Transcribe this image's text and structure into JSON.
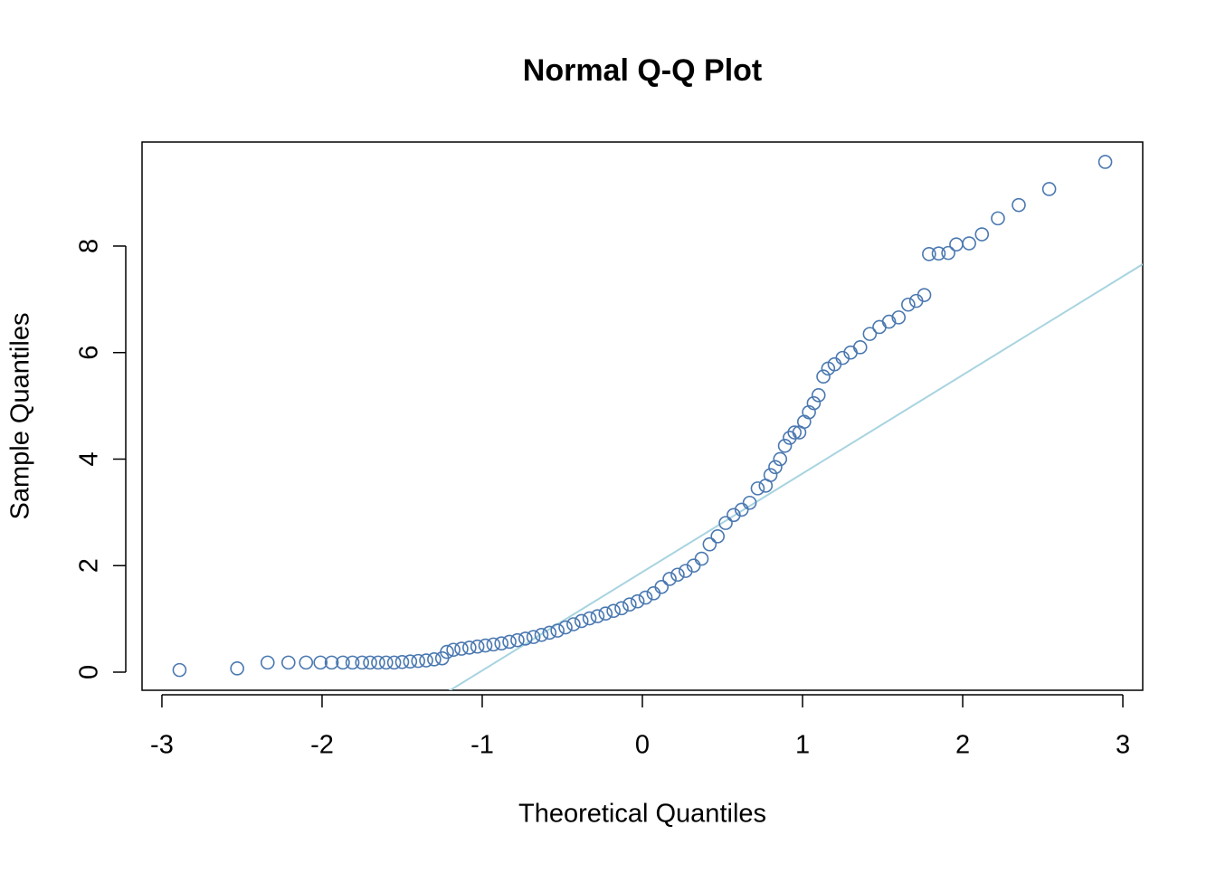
{
  "chart_data": {
    "type": "scatter",
    "title": "Normal Q-Q Plot",
    "x_label": "Theoretical Quantiles",
    "y_label": "Sample Quantiles",
    "xlim": [
      -3.124,
      3.124
    ],
    "ylim": [
      -0.34,
      9.953
    ],
    "xticks": [
      -3,
      -2,
      -1,
      0,
      1,
      2,
      3
    ],
    "yticks": [
      0,
      2,
      4,
      6,
      8
    ],
    "color": "#4a78b0",
    "line_color": "#a8d4e0",
    "qqline": {
      "intercept": 1.88,
      "slope": 1.85
    },
    "x": [
      -2.89,
      -2.53,
      -2.34,
      -2.21,
      -2.1,
      -2.01,
      -1.94,
      -1.87,
      -1.81,
      -1.75,
      -1.7,
      -1.65,
      -1.6,
      -1.55,
      -1.5,
      -1.45,
      -1.4,
      -1.35,
      -1.3,
      -1.25,
      -1.22,
      -1.18,
      -1.13,
      -1.08,
      -1.03,
      -0.98,
      -0.93,
      -0.88,
      -0.83,
      -0.78,
      -0.73,
      -0.68,
      -0.63,
      -0.58,
      -0.53,
      -0.48,
      -0.43,
      -0.38,
      -0.33,
      -0.28,
      -0.23,
      -0.18,
      -0.13,
      -0.08,
      -0.03,
      0.02,
      0.07,
      0.12,
      0.17,
      0.22,
      0.27,
      0.32,
      0.37,
      0.42,
      0.47,
      0.52,
      0.57,
      0.62,
      0.67,
      0.72,
      0.77,
      0.8,
      0.83,
      0.86,
      0.89,
      0.92,
      0.95,
      0.98,
      1.01,
      1.04,
      1.07,
      1.1,
      1.13,
      1.16,
      1.2,
      1.25,
      1.3,
      1.36,
      1.42,
      1.48,
      1.54,
      1.6,
      1.66,
      1.71,
      1.76,
      1.79,
      1.85,
      1.91,
      1.96,
      2.04,
      2.12,
      2.22,
      2.35,
      2.54,
      2.89
    ],
    "y": [
      0.04,
      0.07,
      0.18,
      0.18,
      0.18,
      0.18,
      0.18,
      0.18,
      0.18,
      0.18,
      0.18,
      0.18,
      0.18,
      0.18,
      0.19,
      0.2,
      0.21,
      0.22,
      0.24,
      0.26,
      0.38,
      0.42,
      0.44,
      0.46,
      0.48,
      0.5,
      0.52,
      0.54,
      0.57,
      0.6,
      0.63,
      0.66,
      0.7,
      0.74,
      0.78,
      0.84,
      0.9,
      0.96,
      1.01,
      1.05,
      1.1,
      1.15,
      1.2,
      1.27,
      1.33,
      1.4,
      1.48,
      1.6,
      1.75,
      1.83,
      1.9,
      2.0,
      2.13,
      2.4,
      2.55,
      2.8,
      2.95,
      3.05,
      3.18,
      3.45,
      3.5,
      3.7,
      3.85,
      4.0,
      4.25,
      4.4,
      4.5,
      4.5,
      4.7,
      4.88,
      5.05,
      5.2,
      5.55,
      5.7,
      5.78,
      5.9,
      6.0,
      6.1,
      6.35,
      6.48,
      6.58,
      6.66,
      6.9,
      6.97,
      7.08,
      7.85,
      7.86,
      7.87,
      8.03,
      8.05,
      8.22,
      8.52,
      8.77,
      9.07,
      9.58
    ]
  }
}
